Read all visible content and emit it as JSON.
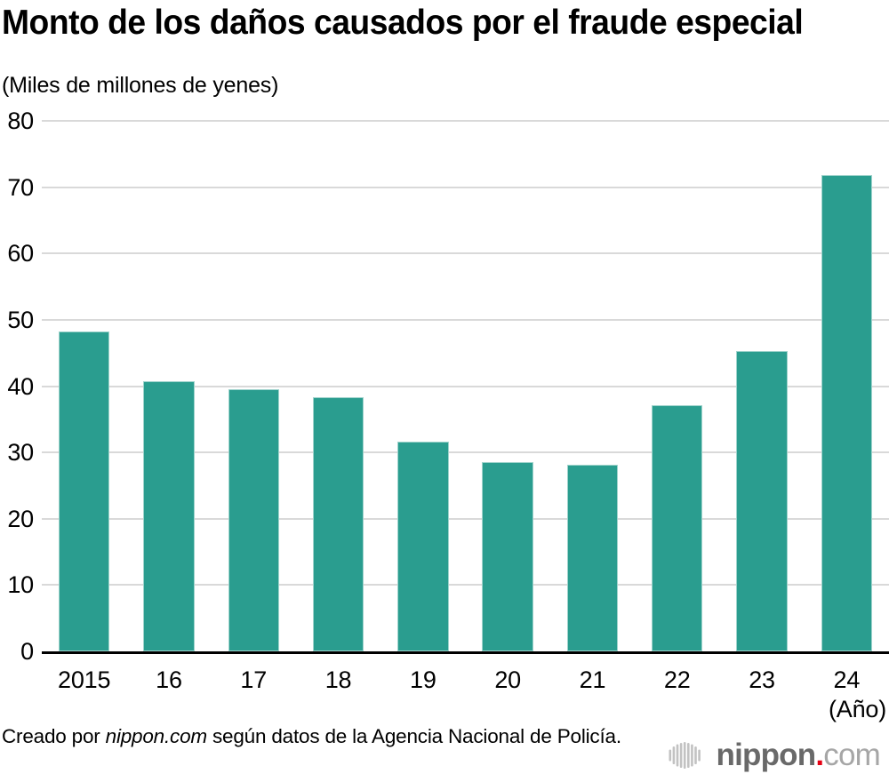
{
  "title": "Monto de los daños causados por el fraude especial",
  "unit_label": "(Miles de millones de yenes)",
  "axis_note": "(Año)",
  "chart_data": {
    "type": "bar",
    "categories": [
      "2015",
      "16",
      "17",
      "18",
      "19",
      "20",
      "21",
      "22",
      "23",
      "24"
    ],
    "values": [
      48.2,
      40.7,
      39.5,
      38.3,
      31.6,
      28.5,
      28.2,
      37.1,
      45.3,
      71.8
    ],
    "title": "Monto de los daños causados por el fraude especial",
    "xlabel": "(Año)",
    "ylabel": "(Miles de millones de yenes)",
    "ylim": [
      0,
      80
    ],
    "yticks": [
      0,
      10,
      20,
      30,
      40,
      50,
      60,
      70,
      80
    ],
    "grid": true,
    "legend": false,
    "bar_color": "#2a9d8f"
  },
  "footer": {
    "credit": {
      "prefix": "Creado por ",
      "source": "nippon.com",
      "suffix": " según datos de la Agencia Nacional de Policía."
    },
    "logo": {
      "brand": "nippon",
      "dot": ".",
      "tld": "com"
    }
  },
  "colors": {
    "bar": "#2a9d8f",
    "grid": "#d9d9d9",
    "axis": "#000000",
    "text": "#000000",
    "logo_brand": "#696969",
    "logo_dot": "#e60012",
    "logo_tld": "#a6a6a6",
    "logo_icon": "#c2c2c2"
  }
}
